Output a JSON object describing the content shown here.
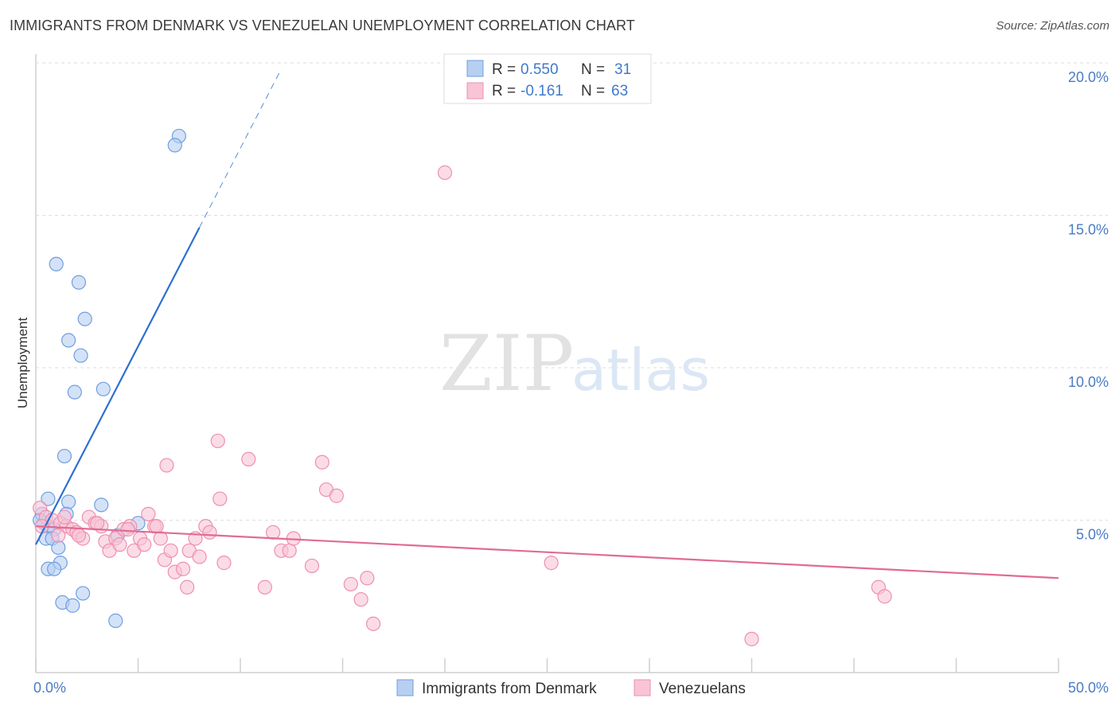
{
  "title": "IMMIGRANTS FROM DENMARK VS VENEZUELAN UNEMPLOYMENT CORRELATION CHART",
  "source": "Source: ZipAtlas.com",
  "watermark": {
    "zip": "ZIP",
    "atlas": "atlas"
  },
  "legend": {
    "r_label": "R =",
    "n_label": "N =",
    "series": [
      {
        "r": "0.550",
        "n": "31"
      },
      {
        "r": "-0.161",
        "n": "63"
      }
    ]
  },
  "chart_data": {
    "type": "scatter",
    "title": "IMMIGRANTS FROM DENMARK VS VENEZUELAN UNEMPLOYMENT CORRELATION CHART",
    "xlabel": "",
    "ylabel": "Unemployment",
    "xlim": [
      0,
      50
    ],
    "ylim": [
      0,
      20
    ],
    "x_tick_labels": [
      "0.0%",
      "50.0%"
    ],
    "y_ticks": [
      5,
      10,
      15,
      20
    ],
    "y_tick_labels": [
      "5.0%",
      "10.0%",
      "15.0%",
      "20.0%"
    ],
    "grid": true,
    "series": [
      {
        "name": "Immigrants from Denmark",
        "color": "#6f9fe0",
        "fill": "#b7cff1",
        "line_color": "#2f6fd0",
        "trend": {
          "x0": 0.0,
          "y0": 4.2,
          "x1": 8.0,
          "y1": 14.6,
          "dash_x1": 12.0,
          "dash_y1": 19.8
        },
        "points": [
          [
            7.0,
            17.6
          ],
          [
            6.8,
            17.3
          ],
          [
            1.0,
            13.4
          ],
          [
            2.1,
            12.8
          ],
          [
            2.4,
            11.6
          ],
          [
            1.6,
            10.9
          ],
          [
            2.2,
            10.4
          ],
          [
            1.9,
            9.2
          ],
          [
            3.3,
            9.3
          ],
          [
            1.4,
            7.1
          ],
          [
            0.6,
            5.7
          ],
          [
            1.6,
            5.6
          ],
          [
            3.2,
            5.5
          ],
          [
            0.3,
            5.2
          ],
          [
            1.5,
            5.2
          ],
          [
            0.4,
            4.9
          ],
          [
            0.6,
            4.8
          ],
          [
            0.9,
            4.7
          ],
          [
            5.0,
            4.9
          ],
          [
            4.0,
            4.5
          ],
          [
            0.5,
            4.4
          ],
          [
            0.8,
            4.4
          ],
          [
            1.1,
            4.1
          ],
          [
            1.2,
            3.6
          ],
          [
            0.6,
            3.4
          ],
          [
            0.9,
            3.4
          ],
          [
            2.3,
            2.6
          ],
          [
            1.3,
            2.3
          ],
          [
            1.8,
            2.2
          ],
          [
            3.9,
            1.7
          ],
          [
            0.2,
            5.0
          ]
        ]
      },
      {
        "name": "Venezuelans",
        "color": "#ee8fb0",
        "fill": "#f8c4d6",
        "line_color": "#e06b96",
        "trend": {
          "x0": 0.0,
          "y0": 4.8,
          "x1": 50.0,
          "y1": 3.1
        },
        "points": [
          [
            0.2,
            5.4
          ],
          [
            0.5,
            5.1
          ],
          [
            0.8,
            5.0
          ],
          [
            1.2,
            4.9
          ],
          [
            1.5,
            4.8
          ],
          [
            1.8,
            4.7
          ],
          [
            2.0,
            4.6
          ],
          [
            2.3,
            4.4
          ],
          [
            1.1,
            4.5
          ],
          [
            2.6,
            5.1
          ],
          [
            2.9,
            4.9
          ],
          [
            3.2,
            4.8
          ],
          [
            3.4,
            4.3
          ],
          [
            3.6,
            4.0
          ],
          [
            3.9,
            4.4
          ],
          [
            4.1,
            4.2
          ],
          [
            4.3,
            4.7
          ],
          [
            4.6,
            4.8
          ],
          [
            4.8,
            4.0
          ],
          [
            5.1,
            4.4
          ],
          [
            5.3,
            4.2
          ],
          [
            5.5,
            5.2
          ],
          [
            5.8,
            4.8
          ],
          [
            6.1,
            4.4
          ],
          [
            6.3,
            3.7
          ],
          [
            6.6,
            4.0
          ],
          [
            6.8,
            3.3
          ],
          [
            7.2,
            3.4
          ],
          [
            7.4,
            2.8
          ],
          [
            7.5,
            4.0
          ],
          [
            7.8,
            4.4
          ],
          [
            8.0,
            3.8
          ],
          [
            8.3,
            4.8
          ],
          [
            8.5,
            4.6
          ],
          [
            6.4,
            6.8
          ],
          [
            9.0,
            5.7
          ],
          [
            9.2,
            3.6
          ],
          [
            8.9,
            7.6
          ],
          [
            10.4,
            7.0
          ],
          [
            11.2,
            2.8
          ],
          [
            11.6,
            4.6
          ],
          [
            12.0,
            4.0
          ],
          [
            12.4,
            4.0
          ],
          [
            12.6,
            4.4
          ],
          [
            13.5,
            3.5
          ],
          [
            14.0,
            6.9
          ],
          [
            14.2,
            6.0
          ],
          [
            14.7,
            5.8
          ],
          [
            15.4,
            2.9
          ],
          [
            15.9,
            2.4
          ],
          [
            16.2,
            3.1
          ],
          [
            16.5,
            1.6
          ],
          [
            20.0,
            16.4
          ],
          [
            25.2,
            3.6
          ],
          [
            35.0,
            1.1
          ],
          [
            41.2,
            2.8
          ],
          [
            41.5,
            2.5
          ],
          [
            2.1,
            4.5
          ],
          [
            3.0,
            4.9
          ],
          [
            5.9,
            4.8
          ],
          [
            1.4,
            5.1
          ],
          [
            4.5,
            4.7
          ],
          [
            0.3,
            4.8
          ]
        ]
      }
    ]
  }
}
